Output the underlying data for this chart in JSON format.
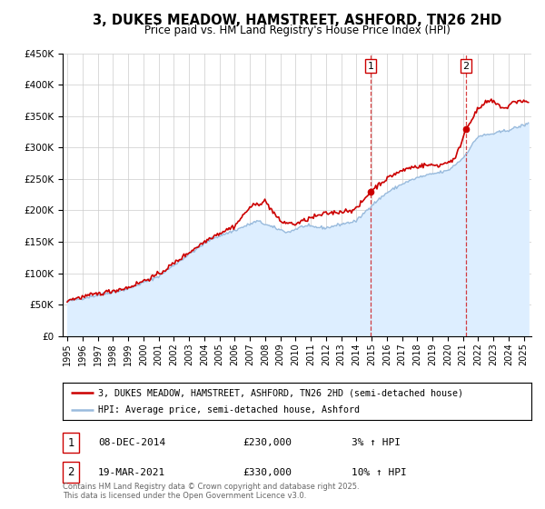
{
  "title": "3, DUKES MEADOW, HAMSTREET, ASHFORD, TN26 2HD",
  "subtitle": "Price paid vs. HM Land Registry's House Price Index (HPI)",
  "ylim": [
    0,
    450000
  ],
  "xlim_start": 1994.7,
  "xlim_end": 2025.5,
  "background_color": "#ffffff",
  "grid_color": "#cccccc",
  "hpi_fill_color": "#ddeeff",
  "hpi_line_color": "#99bbdd",
  "price_line_color": "#cc0000",
  "vline_color": "#cc0000",
  "marker1_date": 2014.93,
  "marker2_date": 2021.21,
  "marker1_price": 230000,
  "marker2_price": 330000,
  "annotation1": [
    "1",
    "08-DEC-2014",
    "£230,000",
    "3% ↑ HPI"
  ],
  "annotation2": [
    "2",
    "19-MAR-2021",
    "£330,000",
    "10% ↑ HPI"
  ],
  "legend_label1": "3, DUKES MEADOW, HAMSTREET, ASHFORD, TN26 2HD (semi-detached house)",
  "legend_label2": "HPI: Average price, semi-detached house, Ashford",
  "footer": "Contains HM Land Registry data © Crown copyright and database right 2025.\nThis data is licensed under the Open Government Licence v3.0.",
  "yticks": [
    0,
    50000,
    100000,
    150000,
    200000,
    250000,
    300000,
    350000,
    400000,
    450000
  ],
  "ytick_labels": [
    "£0",
    "£50K",
    "£100K",
    "£150K",
    "£200K",
    "£250K",
    "£300K",
    "£350K",
    "£400K",
    "£450K"
  ],
  "hpi_anchors_t": [
    1995.0,
    1997.0,
    1999.0,
    2001.0,
    2003.0,
    2004.5,
    2006.0,
    2007.5,
    2008.5,
    2009.5,
    2010.5,
    2012.0,
    2013.0,
    2014.0,
    2015.0,
    2016.0,
    2017.0,
    2018.0,
    2019.0,
    2020.0,
    2021.0,
    2022.0,
    2023.0,
    2024.0,
    2025.3
  ],
  "hpi_anchors_v": [
    55000,
    65000,
    75000,
    95000,
    130000,
    155000,
    168000,
    183000,
    173000,
    165000,
    175000,
    172000,
    178000,
    183000,
    208000,
    228000,
    242000,
    252000,
    258000,
    263000,
    283000,
    318000,
    322000,
    328000,
    338000
  ],
  "price_anchors_t": [
    1995.0,
    1997.0,
    1999.0,
    2001.0,
    2003.0,
    2004.5,
    2006.0,
    2007.0,
    2008.0,
    2009.0,
    2010.0,
    2011.0,
    2012.0,
    2013.0,
    2014.0,
    2014.93,
    2015.5,
    2016.5,
    2017.5,
    2018.5,
    2019.5,
    2020.5,
    2021.21,
    2021.8,
    2022.3,
    2022.8,
    2023.3,
    2023.8,
    2024.3,
    2024.8,
    2025.3
  ],
  "price_anchors_v": [
    57000,
    67000,
    77000,
    98000,
    133000,
    158000,
    175000,
    205000,
    215000,
    182000,
    178000,
    188000,
    195000,
    198000,
    202000,
    230000,
    242000,
    258000,
    268000,
    272000,
    272000,
    282000,
    330000,
    355000,
    368000,
    375000,
    368000,
    362000,
    372000,
    375000,
    372000
  ]
}
